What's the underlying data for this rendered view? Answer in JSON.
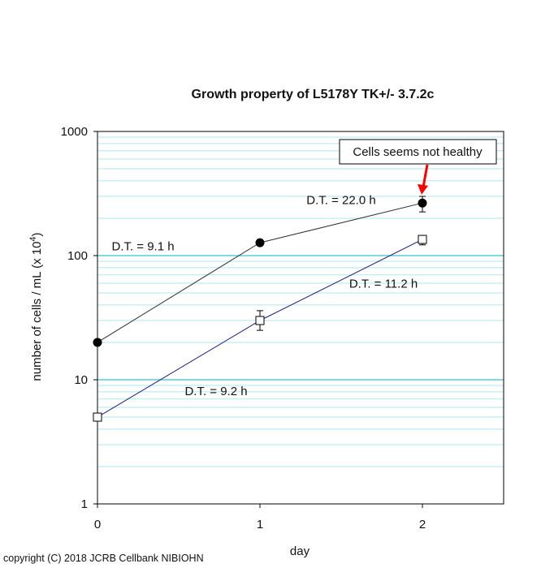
{
  "chart_data": {
    "type": "line",
    "title": "Growth property of L5178Y TK+/- 3.7.2c",
    "xlabel": "day",
    "ylabel_main": "number of cells / mL (x 10",
    "ylabel_sup": "4",
    "ylabel_close": ")",
    "y_scale": "log",
    "ylim": [
      1,
      1000
    ],
    "xlim": [
      0,
      2.5
    ],
    "x_ticks": [
      0,
      1,
      2
    ],
    "x_tick_labels": [
      "0",
      "1",
      "2"
    ],
    "y_ticks": [
      1,
      10,
      100,
      1000
    ],
    "y_tick_labels": [
      "1",
      "10",
      "100",
      "1000"
    ],
    "series": [
      {
        "name": "filled circle",
        "marker": "circle-filled",
        "color": "#333333",
        "x": [
          0,
          1,
          2
        ],
        "values": [
          20,
          127,
          265
        ],
        "error_low": [
          0,
          0,
          225
        ],
        "error_high": [
          0,
          0,
          300
        ]
      },
      {
        "name": "open square",
        "marker": "square-open",
        "color": "#1a1a8c",
        "x": [
          0,
          1,
          2
        ],
        "values": [
          5,
          30,
          135
        ],
        "error_low": [
          0,
          25,
          122
        ],
        "error_high": [
          0,
          36,
          142
        ]
      }
    ],
    "annotations": [
      {
        "text": "D.T. = 9.1 h",
        "x": 0.28,
        "y": 110
      },
      {
        "text": "D.T. = 22.0 h",
        "x": 1.5,
        "y": 260
      },
      {
        "text": "D.T. = 11.2 h",
        "x": 1.76,
        "y": 55
      },
      {
        "text": "D.T. = 9.2 h",
        "x": 0.73,
        "y": 7.5
      }
    ],
    "callout": {
      "text": "Cells seems not healthy",
      "arrow_x": 2,
      "arrow_y": 310
    }
  },
  "copyright": "copyright (C) 2018 JCRB Cellbank NIBIOHN",
  "colors": {
    "grid_minor": "#aee8f0",
    "grid_major": "#35c4cc",
    "arrow": "#ff0000",
    "axis": "#000000"
  }
}
